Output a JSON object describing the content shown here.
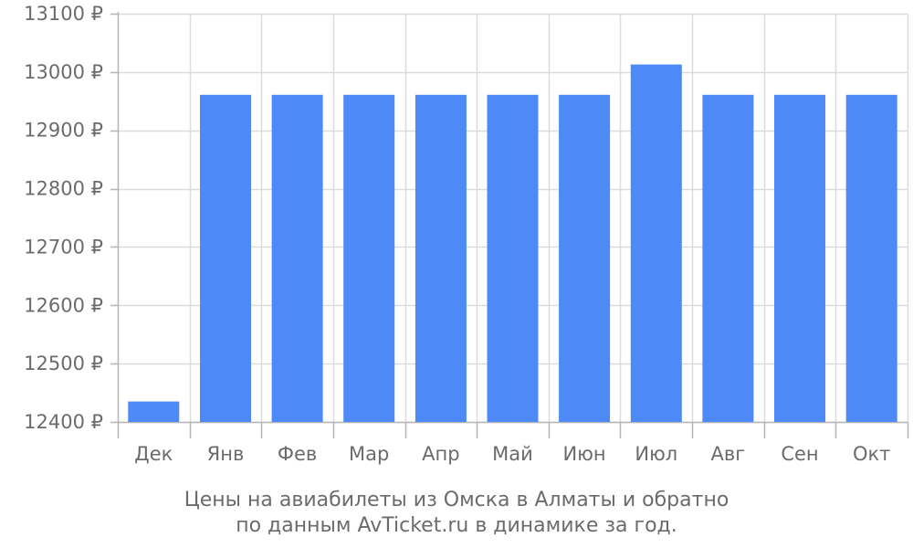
{
  "chart_data": {
    "type": "bar",
    "categories": [
      "Дек",
      "Янв",
      "Фев",
      "Мар",
      "Апр",
      "Май",
      "Июн",
      "Июл",
      "Авг",
      "Сен",
      "Окт"
    ],
    "values": [
      12435,
      12961,
      12961,
      12961,
      12961,
      12961,
      12961,
      13013,
      12961,
      12961,
      12961
    ],
    "ylim": [
      12400,
      13100
    ],
    "yticks": [
      12400,
      12500,
      12600,
      12700,
      12800,
      12900,
      13000,
      13100
    ],
    "ytick_labels": [
      "12400 ₽",
      "12500 ₽",
      "12600 ₽",
      "12700 ₽",
      "12800 ₽",
      "12900 ₽",
      "13000 ₽",
      "13100 ₽"
    ],
    "caption_line1": "Цены на авиабилеты из Омска в Алматы и обратно",
    "caption_line2": "по данным AvTicket.ru в динамике за год.",
    "bar_color": "#4d8af8",
    "grid": true
  }
}
